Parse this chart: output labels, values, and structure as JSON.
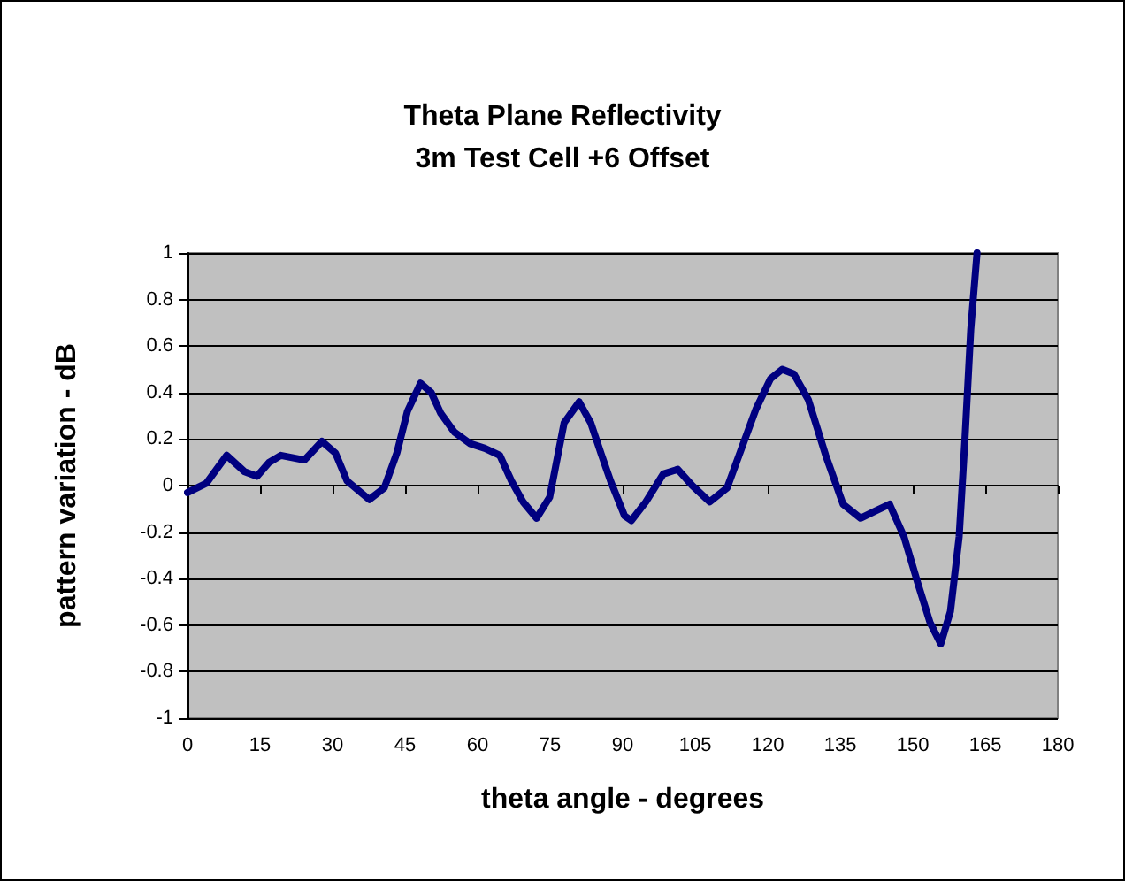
{
  "chart_data": {
    "type": "line",
    "title": "Theta Plane Reflectivity",
    "subtitle": "3m Test Cell +6 Offset",
    "xlabel": "theta angle - degrees",
    "ylabel": "pattern variation - dB",
    "xlim": [
      0,
      180
    ],
    "xticks": [
      0,
      15,
      30,
      45,
      60,
      75,
      90,
      105,
      120,
      135,
      150,
      165,
      180
    ],
    "ylim": [
      -1,
      1
    ],
    "yticks": [
      -1,
      -0.8,
      -0.6,
      -0.4,
      -0.2,
      0,
      0.2,
      0.4,
      0.6,
      0.8,
      1
    ],
    "grid": "y",
    "marker": "none",
    "line_style": "solid",
    "series": [
      {
        "color": "#000080",
        "x": [
          0,
          3.9,
          8.1,
          11.8,
          14.4,
          16.9,
          19.3,
          24.2,
          27.8,
          30.6,
          33,
          37.6,
          40.7,
          43.3,
          45.5,
          48.2,
          50.4,
          52.4,
          55.2,
          58.5,
          61.5,
          64.6,
          67,
          69.4,
          72.2,
          74.9,
          77.9,
          81,
          83.4,
          85.5,
          87.5,
          90.4,
          91.8,
          94.8,
          98.4,
          101.4,
          104.4,
          108,
          111.6,
          114.6,
          117.6,
          120.6,
          123,
          125.4,
          128.4,
          132,
          135.6,
          139.2,
          142.2,
          145.2,
          148.2,
          151.2,
          153.6,
          155.8,
          157.8,
          159.6,
          160.8,
          162,
          162.9,
          163.3
        ],
        "values": [
          -0.03,
          0.01,
          0.13,
          0.06,
          0.04,
          0.1,
          0.13,
          0.11,
          0.19,
          0.14,
          0.02,
          -0.06,
          -0.01,
          0.14,
          0.32,
          0.44,
          0.4,
          0.31,
          0.23,
          0.18,
          0.16,
          0.13,
          0.02,
          -0.07,
          -0.14,
          -0.05,
          0.27,
          0.36,
          0.27,
          0.14,
          0.02,
          -0.13,
          -0.15,
          -0.07,
          0.05,
          0.07,
          0,
          -0.07,
          -0.01,
          0.16,
          0.33,
          0.46,
          0.5,
          0.48,
          0.37,
          0.13,
          -0.08,
          -0.14,
          -0.11,
          -0.08,
          -0.22,
          -0.43,
          -0.59,
          -0.68,
          -0.54,
          -0.22,
          0.2,
          0.67,
          0.9,
          1
        ]
      }
    ]
  }
}
